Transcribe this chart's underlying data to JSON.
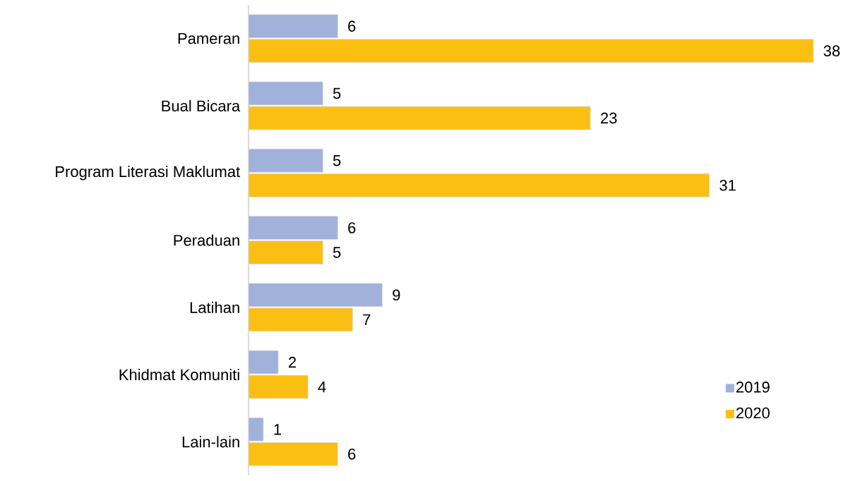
{
  "chart_data": {
    "type": "bar",
    "orientation": "horizontal",
    "categories": [
      "Pameran",
      "Bual Bicara",
      "Program Literasi Maklumat",
      "Peraduan",
      "Latihan",
      "Khidmat Komuniti",
      "Lain-lain"
    ],
    "series": [
      {
        "name": "2019",
        "color": "#a0b1da",
        "values": [
          6,
          5,
          5,
          6,
          9,
          2,
          1
        ]
      },
      {
        "name": "2020",
        "color": "#fbbf14",
        "values": [
          38,
          23,
          31,
          5,
          7,
          4,
          6
        ]
      }
    ],
    "data_labels": true,
    "legend": "bottom right"
  }
}
